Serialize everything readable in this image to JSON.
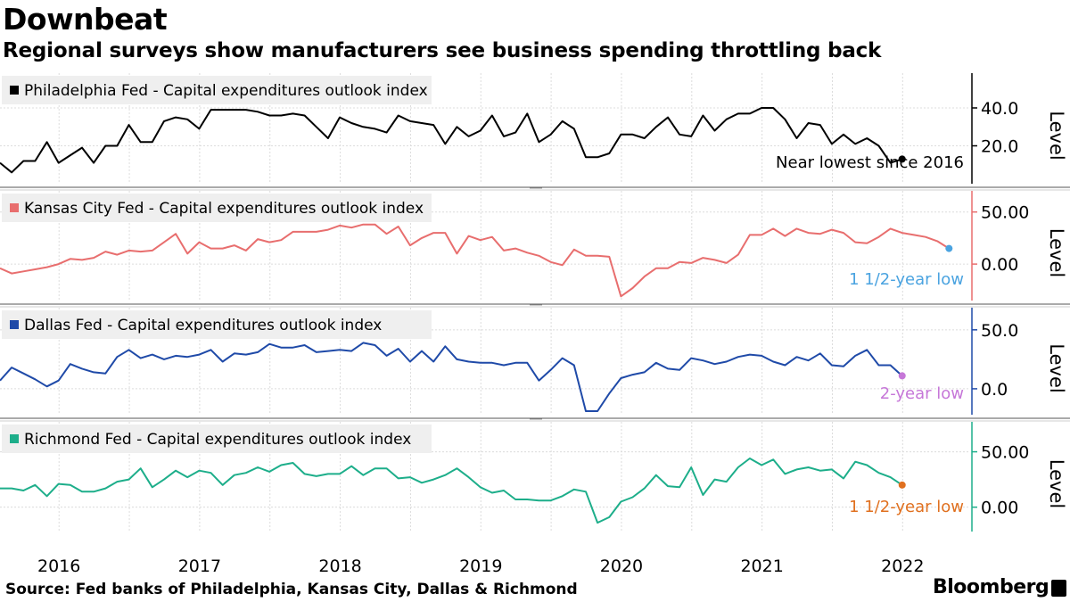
{
  "title": "Downbeat",
  "subtitle": "Regional surveys show manufacturers see business spending throttling back",
  "source": "Source: Fed banks of Philadelphia, Kansas City, Dallas & Richmond",
  "brand": "Bloomberg",
  "chart_data": {
    "type": "line",
    "x_axis": {
      "range": [
        2015.58,
        2022.48
      ],
      "ticks": [
        {
          "value": 2016.0,
          "label": "2016"
        },
        {
          "value": 2017.0,
          "label": "2017"
        },
        {
          "value": 2018.0,
          "label": "2018"
        },
        {
          "value": 2019.0,
          "label": "2019"
        },
        {
          "value": 2020.0,
          "label": "2020"
        },
        {
          "value": 2021.0,
          "label": "2021"
        },
        {
          "value": 2022.0,
          "label": "2022"
        }
      ]
    },
    "panels": [
      {
        "legend": "Philadelphia Fed - Capital expenditures outlook index",
        "color": "#000000",
        "ylabel": "Level",
        "ylim": [
          0,
          56
        ],
        "yticks": [
          {
            "value": 20,
            "label": "20.0"
          },
          {
            "value": 40,
            "label": "40.0"
          }
        ],
        "annotation": {
          "text": "Near lowest since 2016",
          "color": "#000000",
          "marker_color": "#000000"
        },
        "series": {
          "start": 2015.58,
          "step": 0.08333,
          "values": [
            11,
            6,
            12,
            12,
            22,
            11,
            15,
            19,
            11,
            20,
            20,
            31,
            22,
            22,
            33,
            35,
            34,
            29,
            39,
            39,
            39,
            39,
            38,
            36,
            36,
            37,
            36,
            30,
            24,
            35,
            32,
            30,
            29,
            27,
            36,
            33,
            32,
            31,
            21,
            30,
            25,
            28,
            36,
            25,
            27,
            37,
            22,
            26,
            33,
            29,
            14,
            14,
            16,
            26,
            26,
            24,
            30,
            35,
            26,
            25,
            36,
            28,
            34,
            37,
            37,
            40,
            40,
            34,
            24,
            32,
            31,
            21,
            26,
            21,
            24,
            20,
            11,
            13
          ]
        }
      },
      {
        "legend": "Kansas City Fed - Capital expenditures outlook index",
        "color": "#e86e6e",
        "ylabel": "Level",
        "ylim": [
          -35,
          66
        ],
        "yticks": [
          {
            "value": 0,
            "label": "0.00"
          },
          {
            "value": 50,
            "label": "50.00"
          }
        ],
        "annotation": {
          "text": "1 1/2-year low",
          "color": "#4aa3e0",
          "marker_color": "#4aa3e0"
        },
        "series": {
          "start": 2015.58,
          "step": 0.08333,
          "values": [
            -4,
            -9,
            -7,
            -5,
            -3,
            0,
            5,
            4,
            6,
            12,
            9,
            13,
            12,
            13,
            21,
            29,
            10,
            21,
            15,
            15,
            18,
            13,
            24,
            21,
            23,
            31,
            31,
            31,
            33,
            37,
            35,
            38,
            38,
            29,
            36,
            18,
            25,
            30,
            30,
            10,
            27,
            23,
            26,
            13,
            15,
            11,
            8,
            2,
            -1,
            14,
            8,
            8,
            7,
            -31,
            -23,
            -12,
            -4,
            -4,
            2,
            1,
            6,
            4,
            1,
            9,
            28,
            28,
            34,
            27,
            34,
            30,
            29,
            33,
            30,
            21,
            20,
            26,
            34,
            30,
            28,
            26,
            22,
            15
          ]
        }
      },
      {
        "legend": "Dallas Fed - Capital expenditures outlook index",
        "color": "#1f4aa8",
        "ylabel": "Level",
        "ylim": [
          -22,
          65
        ],
        "yticks": [
          {
            "value": 0,
            "label": "0.0"
          },
          {
            "value": 50,
            "label": "50.0"
          }
        ],
        "annotation": {
          "text": "2-year low",
          "color": "#c677d8",
          "marker_color": "#c677d8"
        },
        "series": {
          "start": 2015.58,
          "step": 0.08333,
          "values": [
            7,
            18,
            13,
            8,
            2,
            7,
            21,
            17,
            14,
            13,
            27,
            33,
            26,
            29,
            25,
            28,
            27,
            29,
            33,
            23,
            30,
            29,
            31,
            38,
            35,
            35,
            37,
            31,
            32,
            33,
            32,
            39,
            37,
            28,
            34,
            23,
            32,
            23,
            36,
            25,
            23,
            22,
            22,
            20,
            22,
            22,
            7,
            16,
            26,
            20,
            -19,
            -19,
            -4,
            9,
            12,
            14,
            22,
            17,
            16,
            26,
            24,
            21,
            23,
            27,
            29,
            28,
            23,
            20,
            27,
            24,
            30,
            20,
            19,
            28,
            33,
            20,
            20,
            11
          ]
        }
      },
      {
        "legend": "Richmond Fed - Capital expenditures outlook index",
        "color": "#1dae8a",
        "ylabel": "Level",
        "ylim": [
          -22,
          73
        ],
        "yticks": [
          {
            "value": 0,
            "label": "0.00"
          },
          {
            "value": 50,
            "label": "50.00"
          }
        ],
        "annotation": {
          "text": "1 1/2-year low",
          "color": "#e0701f",
          "marker_color": "#e0701f"
        },
        "series": {
          "start": 2015.58,
          "step": 0.08333,
          "values": [
            17,
            17,
            15,
            20,
            10,
            21,
            20,
            14,
            14,
            17,
            23,
            25,
            35,
            18,
            25,
            33,
            27,
            33,
            31,
            20,
            29,
            31,
            36,
            32,
            38,
            40,
            30,
            28,
            30,
            30,
            37,
            29,
            35,
            35,
            26,
            27,
            22,
            25,
            29,
            35,
            27,
            18,
            13,
            15,
            7,
            7,
            6,
            6,
            10,
            16,
            14,
            -14,
            -9,
            5,
            9,
            17,
            29,
            19,
            18,
            36,
            11,
            25,
            23,
            36,
            44,
            38,
            43,
            30,
            34,
            36,
            33,
            34,
            26,
            41,
            38,
            31,
            27,
            20
          ]
        }
      }
    ]
  }
}
